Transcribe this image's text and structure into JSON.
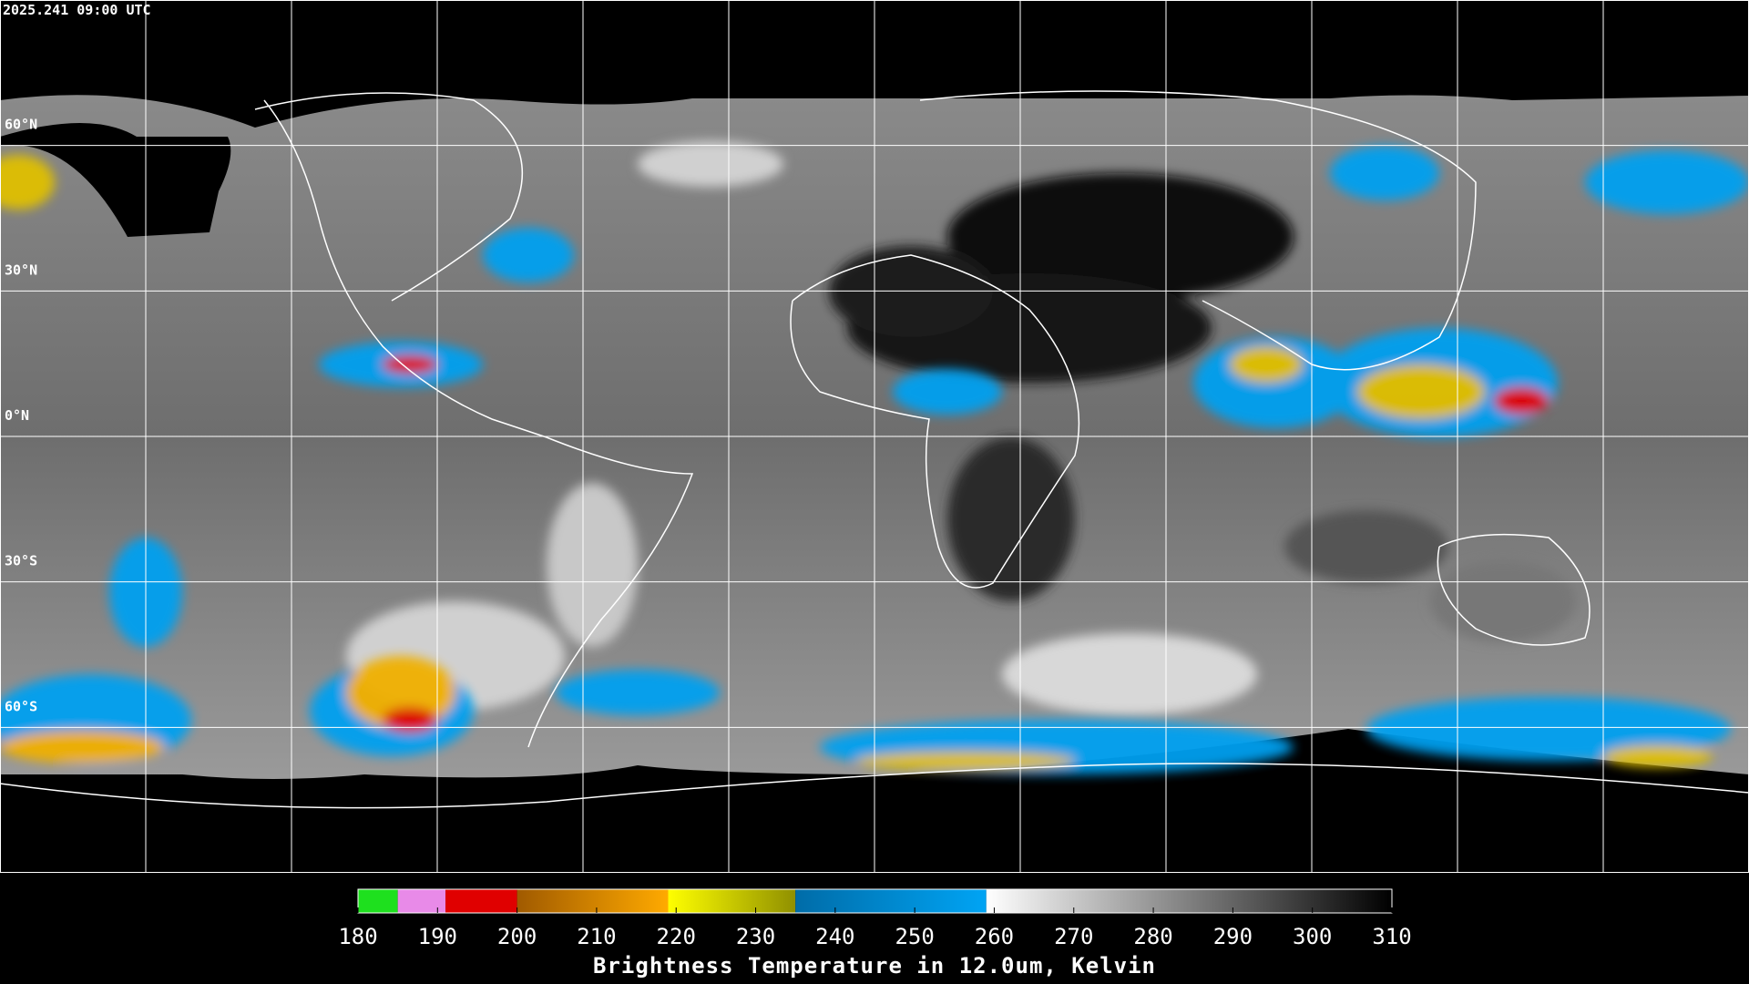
{
  "header": {
    "timestamp": "2025.241 09:00 UTC"
  },
  "map": {
    "latitudes": [
      {
        "value": 60,
        "label": "60°N"
      },
      {
        "value": 30,
        "label": "30°N"
      },
      {
        "value": 0,
        "label": "0°N"
      },
      {
        "value": -30,
        "label": "30°S"
      },
      {
        "value": -60,
        "label": "60°S"
      }
    ]
  },
  "colorbar": {
    "title": "Brightness Temperature in 12.0um, Kelvin",
    "range": [
      180,
      310
    ],
    "ticks": [
      180,
      190,
      200,
      210,
      220,
      230,
      240,
      250,
      260,
      270,
      280,
      290,
      300,
      310
    ],
    "segments": [
      {
        "from": 180,
        "to": 185,
        "colors": [
          "#1ee01e",
          "#1ee01e"
        ]
      },
      {
        "from": 185,
        "to": 191,
        "colors": [
          "#e88ae8",
          "#e88ae8"
        ]
      },
      {
        "from": 191,
        "to": 200,
        "colors": [
          "#e00000",
          "#e00000"
        ]
      },
      {
        "from": 200,
        "to": 219,
        "colors": [
          "#a05a00",
          "#ffaa00"
        ]
      },
      {
        "from": 219,
        "to": 235,
        "colors": [
          "#ffff00",
          "#909000"
        ]
      },
      {
        "from": 235,
        "to": 259,
        "colors": [
          "#006ca8",
          "#00a4f4"
        ]
      },
      {
        "from": 259,
        "to": 310,
        "colors": [
          "#ffffff",
          "#000000"
        ]
      }
    ]
  }
}
